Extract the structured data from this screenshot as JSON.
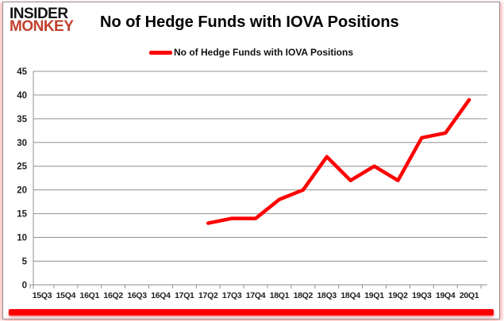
{
  "logo": {
    "line1": "INSIDER",
    "line2": "MONKEY"
  },
  "header": {
    "title": "No of Hedge Funds with IOVA Positions"
  },
  "legend": {
    "label": "No of Hedge Funds with IOVA Positions",
    "color": "#ff0000"
  },
  "chart_data": {
    "type": "line",
    "title": "No of Hedge Funds with IOVA Positions",
    "categories": [
      "15Q3",
      "15Q4",
      "16Q1",
      "16Q2",
      "16Q3",
      "16Q4",
      "17Q1",
      "17Q2",
      "17Q3",
      "17Q4",
      "18Q1",
      "18Q2",
      "18Q3",
      "18Q4",
      "19Q1",
      "19Q2",
      "19Q3",
      "19Q4",
      "20Q1"
    ],
    "series": [
      {
        "name": "No of Hedge Funds with IOVA Positions",
        "color": "#ff0000",
        "values": [
          null,
          null,
          null,
          null,
          null,
          null,
          null,
          13,
          14,
          14,
          18,
          20,
          27,
          22,
          25,
          22,
          31,
          32,
          39
        ]
      }
    ],
    "xlabel": "",
    "ylabel": "",
    "ylim": [
      0,
      45
    ],
    "ytick_step": 5,
    "grid": true,
    "legend_position": "top-center",
    "grid_color": "#909090",
    "axis_text_color": "#1f1f1f"
  },
  "colors": {
    "logo_red": "#c2402e",
    "bottom_bar": "#fb0200"
  }
}
